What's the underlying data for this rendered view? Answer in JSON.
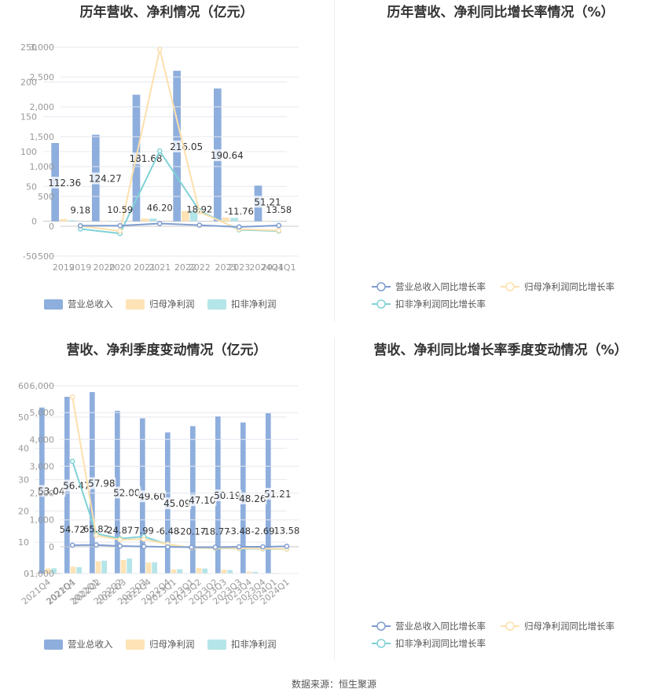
{
  "footer": {
    "source": "数据来源：恒生聚源"
  },
  "colors": {
    "revenue": "#8eaedd",
    "parent_profit": "#fde3b5",
    "deducted_profit": "#b4e5e8",
    "revenue_line": "#7f9dd0",
    "parent_line": "#fde0ad",
    "deducted_line": "#7fd2d6",
    "grid": "#e6e8ef",
    "axis_text": "#999999"
  },
  "chart_data": [
    {
      "id": "annual-bars",
      "type": "bar",
      "title": "历年营收、净利情况（亿元）",
      "categories": [
        "2019",
        "2020",
        "2021",
        "2022",
        "2023",
        "2024Q1"
      ],
      "series": [
        {
          "name": "营业总收入",
          "values": [
            112.36,
            124.27,
            181.68,
            216.05,
            190.64,
            51.21
          ]
        },
        {
          "name": "归母净利润",
          "values": [
            3.2,
            0.3,
            4.1,
            14.5,
            5.3,
            0.2
          ]
        },
        {
          "name": "扣非净利润",
          "values": [
            1.5,
            0.1,
            4.0,
            14.8,
            5.0,
            0.1
          ]
        }
      ],
      "data_labels": [
        "112.36",
        "124.27",
        "181.68",
        "216.05",
        "190.64",
        "51.21"
      ],
      "ylim": [
        -50,
        250
      ],
      "yticks": [
        -50,
        0,
        50,
        100,
        150,
        200,
        250
      ],
      "ytick_labels": [
        "-50",
        "0",
        "50",
        "100",
        "150",
        "200",
        "250"
      ],
      "grid": true,
      "legend_position": "bottom"
    },
    {
      "id": "annual-growth",
      "type": "line",
      "title": "历年营收、净利同比增长率情况（%）",
      "categories": [
        "2019",
        "2020",
        "2021",
        "2022",
        "2023",
        "2024Q1"
      ],
      "series": [
        {
          "name": "营业总收入同比增长率",
          "values": [
            9.18,
            10.59,
            46.2,
            18.92,
            -11.76,
            13.58
          ]
        },
        {
          "name": "归母净利润同比增长率",
          "values": [
            5,
            -80,
            2960,
            240,
            -50,
            -70
          ]
        },
        {
          "name": "扣非净利润同比增长率",
          "values": [
            -45,
            -120,
            1260,
            260,
            -60,
            -80
          ]
        }
      ],
      "data_labels": [
        "9.18",
        "10.59",
        "46.20",
        "18.92",
        "-11.76",
        "13.58"
      ],
      "ylim": [
        -500,
        3000
      ],
      "yticks": [
        -500,
        0,
        500,
        1000,
        1500,
        2000,
        2500,
        3000
      ],
      "ytick_labels": [
        "-500",
        "0",
        "500",
        "1,000",
        "1,500",
        "2,000",
        "2,500",
        "3,000"
      ],
      "grid": true,
      "legend_position": "bottom"
    },
    {
      "id": "quarterly-bars",
      "type": "bar",
      "title": "营收、净利季度变动情况（亿元）",
      "categories": [
        "2021Q4",
        "2022Q1",
        "2022Q2",
        "2022Q3",
        "2022Q4",
        "2023Q1",
        "2023Q2",
        "2023Q3",
        "2023Q4",
        "2024Q1"
      ],
      "series": [
        {
          "name": "营业总收入",
          "values": [
            53.04,
            56.47,
            57.98,
            52.0,
            49.6,
            45.09,
            47.1,
            50.19,
            48.26,
            51.21
          ]
        },
        {
          "name": "归母净利润",
          "values": [
            1.6,
            2.2,
            3.9,
            4.3,
            3.5,
            1.3,
            1.8,
            1.2,
            0.6,
            0.2
          ]
        },
        {
          "name": "扣非净利润",
          "values": [
            1.7,
            2.0,
            4.1,
            4.8,
            3.6,
            1.4,
            1.6,
            1.1,
            0.5,
            0.1
          ]
        }
      ],
      "data_labels": [
        "53.04",
        "56.47",
        "57.98",
        "52.00",
        "49.60",
        "45.09",
        "47.10",
        "50.19",
        "48.26",
        "51.21"
      ],
      "ylim": [
        0,
        60
      ],
      "yticks": [
        0,
        10,
        20,
        30,
        40,
        50,
        60
      ],
      "ytick_labels": [
        "0",
        "10",
        "20",
        "30",
        "40",
        "50",
        "60"
      ],
      "grid": true,
      "legend_position": "bottom"
    },
    {
      "id": "quarterly-growth",
      "type": "line",
      "title": "营收、净利同比增长率季度变动情况（%）",
      "categories": [
        "2021Q4",
        "2022Q1",
        "2022Q2",
        "2022Q3",
        "2022Q4",
        "2023Q1",
        "2023Q2",
        "2023Q3",
        "2023Q4",
        "2024Q1"
      ],
      "series": [
        {
          "name": "营业总收入同比增长率",
          "values": [
            54.72,
            65.82,
            24.87,
            7.99,
            -6.48,
            -20.17,
            -18.77,
            -3.48,
            -2.69,
            13.58
          ]
        },
        {
          "name": "归母净利润同比增长率",
          "values": [
            5580,
            420,
            260,
            280,
            90,
            -40,
            -50,
            -60,
            -70,
            -80
          ]
        },
        {
          "name": "扣非净利润同比增长率",
          "values": [
            3180,
            490,
            300,
            380,
            80,
            -40,
            -60,
            -70,
            -80,
            -90
          ]
        }
      ],
      "data_labels": [
        "54.72",
        "65.82",
        "24.87",
        "7.99",
        "-6.48",
        "-20.17",
        "-18.77",
        "-3.48",
        "-2.69",
        "13.58"
      ],
      "ylim": [
        -1000,
        6000
      ],
      "yticks": [
        -1000,
        0,
        1000,
        2000,
        3000,
        4000,
        5000,
        6000
      ],
      "ytick_labels": [
        "-1,000",
        "0",
        "1,000",
        "2,000",
        "3,000",
        "4,000",
        "5,000",
        "6,000"
      ],
      "grid": true,
      "legend_position": "bottom"
    }
  ]
}
